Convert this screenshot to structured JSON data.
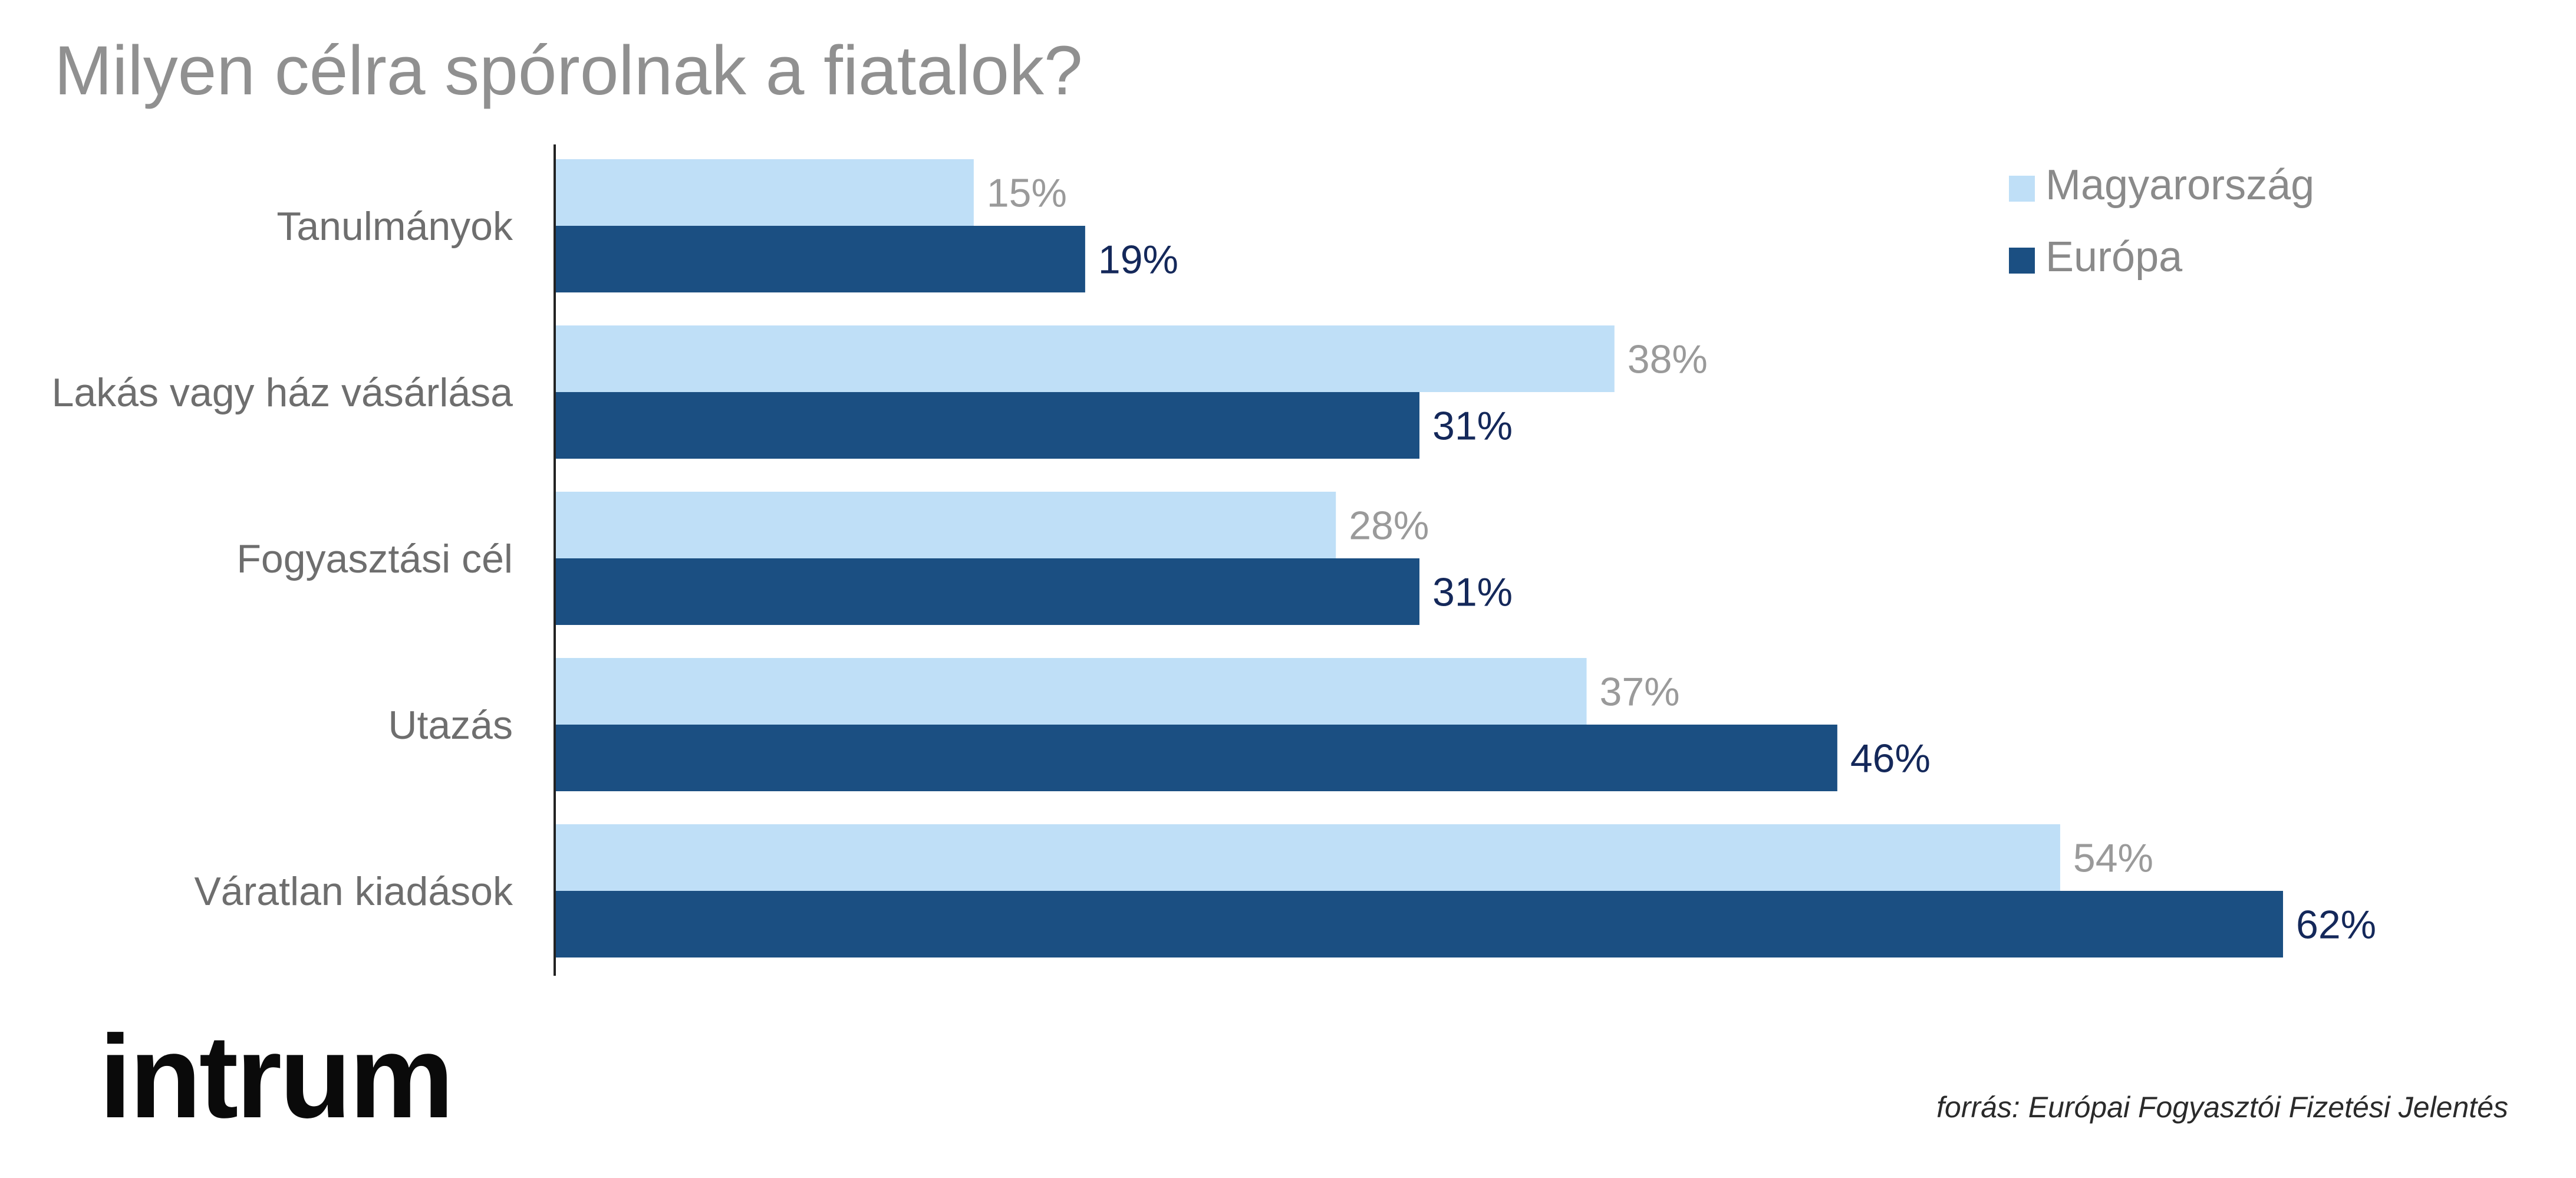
{
  "chart_data": {
    "type": "bar",
    "orientation": "horizontal",
    "title": "Milyen célra spórolnak a fiatalok?",
    "categories": [
      "Tanulmányok",
      "Lakás vagy ház vásárlása",
      "Fogyasztási cél",
      "Utazás",
      "Váratlan kiadások"
    ],
    "series": [
      {
        "name": "Magyarország",
        "color": "#bfdff7",
        "label_color": "#9a9a9a",
        "values": [
          15,
          38,
          28,
          37,
          54
        ]
      },
      {
        "name": "Európa",
        "color": "#1b4f82",
        "label_color": "#14285a",
        "values": [
          19,
          31,
          31,
          46,
          62
        ]
      }
    ],
    "value_suffix": "%",
    "xlim": [
      0,
      66
    ],
    "grid": false,
    "legend_position": "top-right",
    "xlabel": "",
    "ylabel": ""
  },
  "source": "forrás: Európai Fogyasztói Fizetési Jelentés",
  "logo_text": "intrum"
}
